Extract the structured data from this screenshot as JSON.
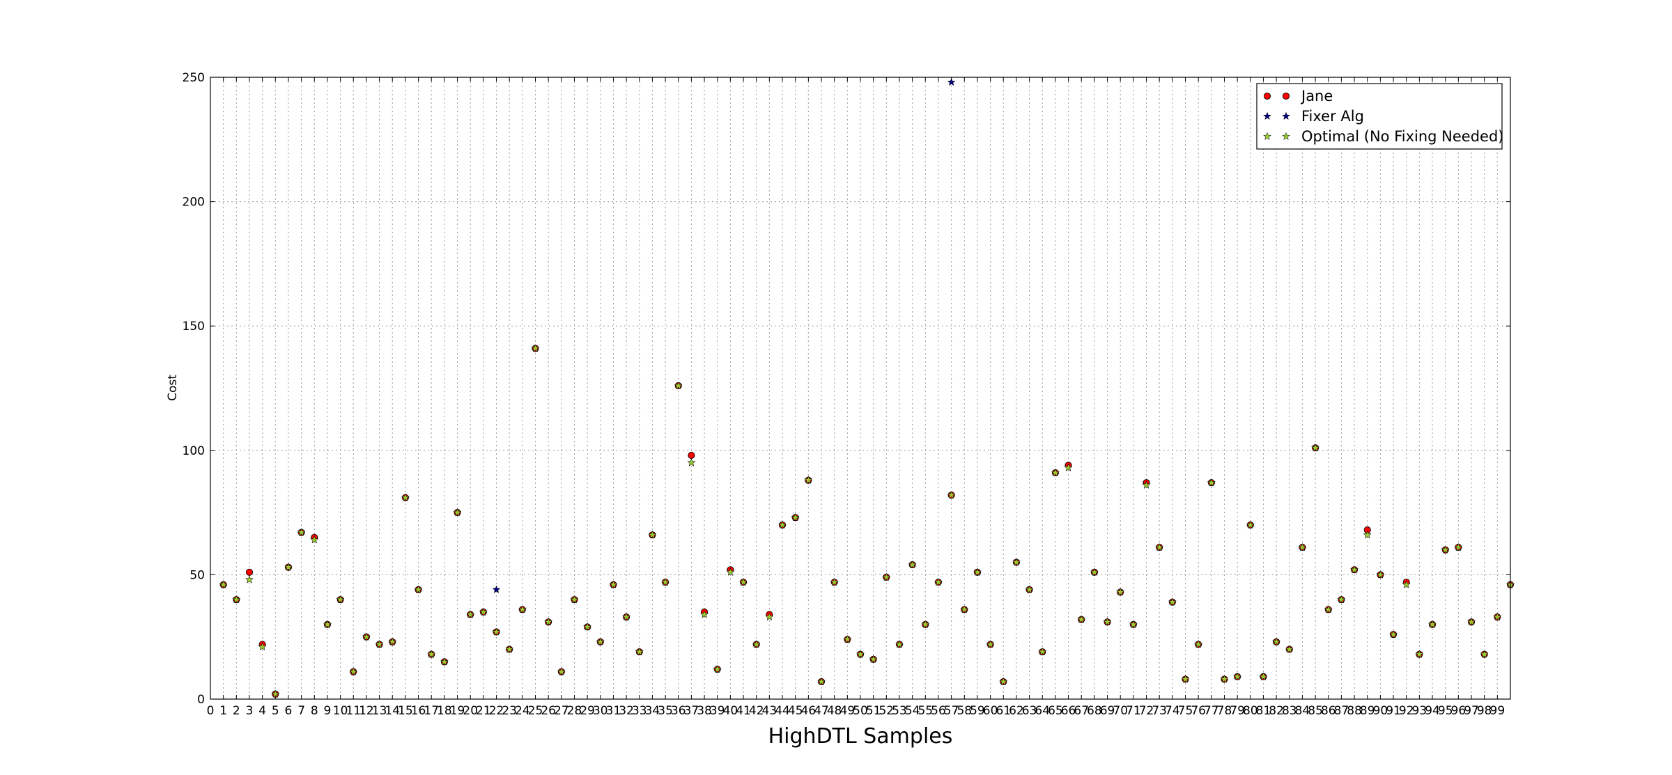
{
  "chart_data": {
    "type": "scatter",
    "title": "",
    "xlabel": "HighDTL Samples",
    "ylabel": "Cost",
    "xlim": [
      0,
      100
    ],
    "ylim": [
      0,
      250
    ],
    "xticks": [
      0,
      1,
      2,
      3,
      4,
      5,
      6,
      7,
      8,
      9,
      10,
      11,
      12,
      13,
      14,
      15,
      16,
      17,
      18,
      19,
      20,
      21,
      22,
      23,
      24,
      25,
      26,
      27,
      28,
      29,
      30,
      31,
      32,
      33,
      34,
      35,
      36,
      37,
      38,
      39,
      40,
      41,
      42,
      43,
      44,
      45,
      46,
      47,
      48,
      49,
      50,
      51,
      52,
      53,
      54,
      55,
      56,
      57,
      58,
      59,
      60,
      61,
      62,
      63,
      64,
      65,
      66,
      67,
      68,
      69,
      70,
      71,
      72,
      73,
      74,
      75,
      76,
      77,
      78,
      79,
      80,
      81,
      82,
      83,
      84,
      85,
      86,
      87,
      88,
      89,
      90,
      91,
      92,
      93,
      94,
      95,
      96,
      97,
      98,
      99
    ],
    "yticks": [
      0,
      50,
      100,
      150,
      200,
      250
    ],
    "grid": true,
    "legend_position": "top-right",
    "x": [
      1,
      2,
      3,
      4,
      5,
      6,
      7,
      8,
      9,
      10,
      11,
      12,
      13,
      14,
      15,
      16,
      17,
      18,
      19,
      20,
      21,
      22,
      23,
      24,
      25,
      26,
      27,
      28,
      29,
      30,
      31,
      32,
      33,
      34,
      35,
      36,
      37,
      38,
      39,
      40,
      41,
      42,
      43,
      44,
      45,
      46,
      47,
      48,
      49,
      50,
      51,
      52,
      53,
      54,
      55,
      56,
      57,
      58,
      59,
      60,
      61,
      62,
      63,
      64,
      65,
      66,
      67,
      68,
      69,
      70,
      71,
      72,
      73,
      74,
      75,
      76,
      77,
      78,
      79,
      80,
      81,
      82,
      83,
      84,
      85,
      86,
      87,
      88,
      89,
      90,
      91,
      92,
      93,
      94,
      95,
      96,
      97,
      98,
      99,
      100
    ],
    "series": [
      {
        "name": "Jane",
        "marker": "circle",
        "color": "#ff0000",
        "values": [
          46,
          40,
          51,
          22,
          2,
          53,
          67,
          65,
          30,
          40,
          11,
          25,
          22,
          23,
          81,
          44,
          18,
          15,
          75,
          34,
          35,
          27,
          20,
          36,
          141,
          31,
          11,
          40,
          29,
          23,
          46,
          33,
          19,
          66,
          47,
          126,
          98,
          35,
          12,
          52,
          47,
          22,
          34,
          70,
          73,
          88,
          7,
          47,
          24,
          18,
          16,
          49,
          22,
          54,
          30,
          47,
          82,
          36,
          51,
          22,
          7,
          55,
          44,
          19,
          91,
          94,
          32,
          51,
          31,
          43,
          30,
          87,
          61,
          39,
          8,
          22,
          87,
          8,
          9,
          70,
          9,
          23,
          20,
          61,
          101,
          36,
          40,
          52,
          68,
          50,
          26,
          47,
          18,
          30,
          60,
          61,
          31,
          18,
          33,
          46
        ]
      },
      {
        "name": "Fixer Alg",
        "marker": "star",
        "color": "#000080",
        "values": [
          46,
          40,
          48,
          21,
          2,
          53,
          67,
          64,
          30,
          40,
          11,
          25,
          22,
          23,
          81,
          44,
          18,
          15,
          75,
          34,
          35,
          44,
          20,
          36,
          141,
          31,
          11,
          40,
          29,
          23,
          46,
          33,
          19,
          66,
          47,
          126,
          95,
          34,
          12,
          51,
          47,
          22,
          33,
          70,
          73,
          88,
          7,
          47,
          24,
          18,
          16,
          49,
          22,
          54,
          30,
          47,
          248,
          36,
          51,
          22,
          7,
          55,
          44,
          19,
          91,
          93,
          32,
          51,
          31,
          43,
          30,
          86,
          61,
          39,
          8,
          22,
          87,
          8,
          9,
          70,
          9,
          23,
          20,
          61,
          101,
          36,
          40,
          52,
          66,
          50,
          26,
          46,
          18,
          30,
          60,
          61,
          31,
          18,
          33,
          46
        ]
      },
      {
        "name": "Optimal (No Fixing Needed)",
        "marker": "star",
        "color": "#9acd32",
        "values": [
          46,
          40,
          48,
          21,
          2,
          53,
          67,
          64,
          30,
          40,
          11,
          25,
          22,
          23,
          81,
          44,
          18,
          15,
          75,
          34,
          35,
          27,
          20,
          36,
          141,
          31,
          11,
          40,
          29,
          23,
          46,
          33,
          19,
          66,
          47,
          126,
          95,
          34,
          12,
          51,
          47,
          22,
          33,
          70,
          73,
          88,
          7,
          47,
          24,
          18,
          16,
          49,
          22,
          54,
          30,
          47,
          82,
          36,
          51,
          22,
          7,
          55,
          44,
          19,
          91,
          93,
          32,
          51,
          31,
          43,
          30,
          86,
          61,
          39,
          8,
          22,
          87,
          8,
          9,
          70,
          9,
          23,
          20,
          61,
          101,
          36,
          40,
          52,
          66,
          50,
          26,
          46,
          18,
          30,
          60,
          61,
          31,
          18,
          33,
          46
        ]
      }
    ]
  }
}
